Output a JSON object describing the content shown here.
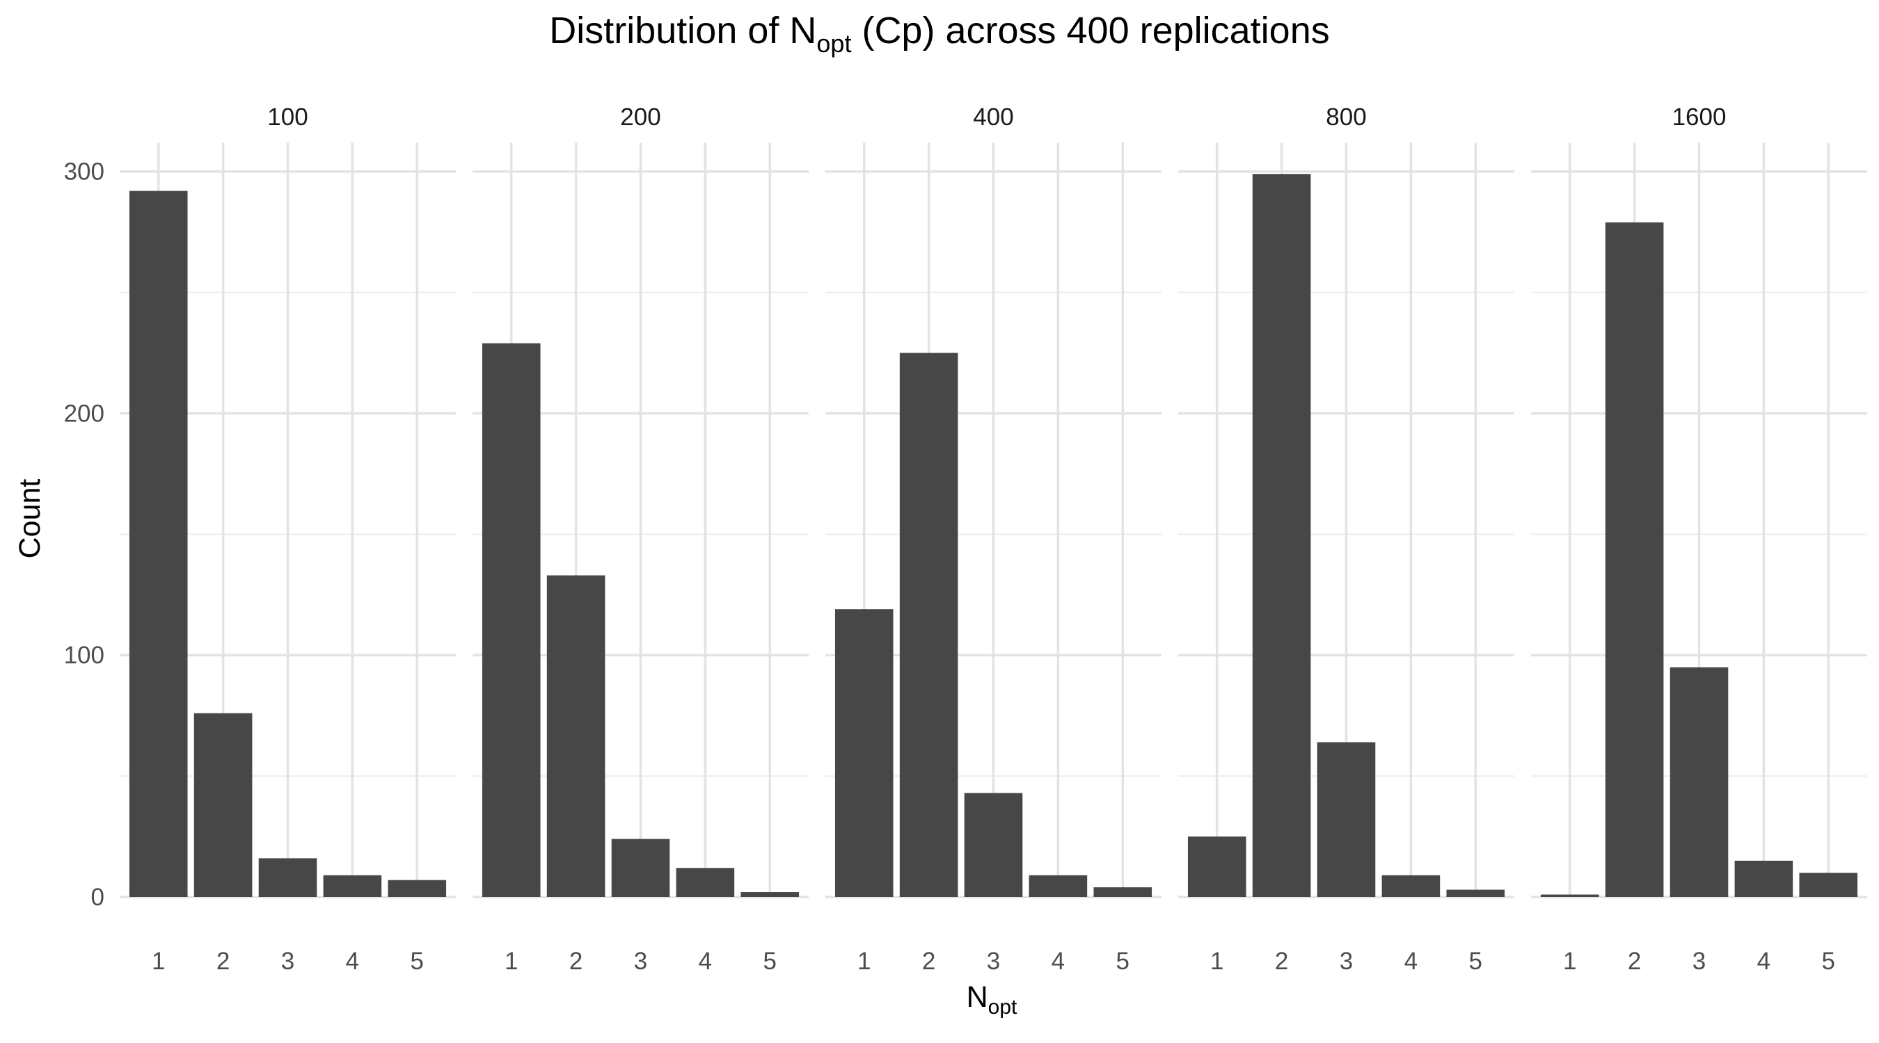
{
  "chart_data": {
    "type": "bar",
    "title": {
      "prefix": "Distribution of N",
      "subscript": "opt",
      "suffix": " (Cp) across 400 replications"
    },
    "xlabel": {
      "main": "N",
      "subscript": "opt"
    },
    "ylabel": "Count",
    "categories": [
      "1",
      "2",
      "3",
      "4",
      "5"
    ],
    "ylim": [
      0,
      312
    ],
    "yticks": [
      0,
      100,
      200,
      300
    ],
    "grid": true,
    "bar_color": "#474747",
    "panels": [
      {
        "label": "100",
        "values": [
          292,
          76,
          16,
          9,
          7
        ]
      },
      {
        "label": "200",
        "values": [
          229,
          133,
          24,
          12,
          2
        ]
      },
      {
        "label": "400",
        "values": [
          119,
          225,
          43,
          9,
          4
        ]
      },
      {
        "label": "800",
        "values": [
          25,
          299,
          64,
          9,
          3
        ]
      },
      {
        "label": "1600",
        "values": [
          1,
          279,
          95,
          15,
          10
        ]
      }
    ]
  }
}
